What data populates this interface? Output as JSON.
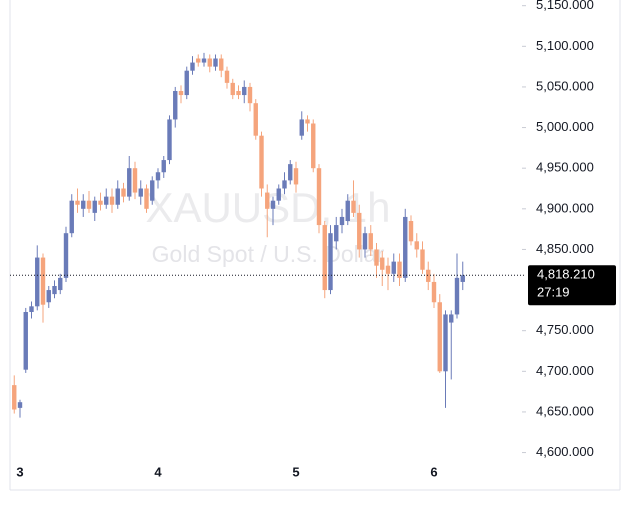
{
  "chart_data": {
    "type": "candlestick",
    "watermark": "XAUUSD, 1h",
    "watermark_subtitle": "Gold Spot / U.S. Dollar",
    "up_color": "#6a7bb8",
    "down_color": "#f5a47c",
    "categories": [
      null,
      "3",
      null,
      null,
      null,
      null,
      null,
      null,
      null,
      null,
      null,
      null,
      null,
      null,
      null,
      null,
      null,
      null,
      null,
      null,
      null,
      null,
      null,
      null,
      null,
      "4",
      null,
      null,
      null,
      null,
      null,
      null,
      null,
      null,
      null,
      null,
      null,
      null,
      null,
      null,
      null,
      null,
      null,
      null,
      null,
      null,
      null,
      null,
      null,
      "5",
      null,
      null,
      null,
      null,
      null,
      null,
      null,
      null,
      null,
      null,
      null,
      null,
      null,
      null,
      null,
      null,
      null,
      null,
      null,
      null,
      null,
      null,
      null,
      "6",
      null,
      null,
      null,
      null,
      null
    ],
    "open": [
      4683,
      4655,
      4702,
      4773,
      4780,
      4840,
      4785,
      4795,
      4800,
      4815,
      4870,
      4910,
      4900,
      4910,
      4895,
      4910,
      4905,
      4915,
      4905,
      4925,
      4915,
      4950,
      4915,
      4925,
      4910,
      4935,
      4945,
      4960,
      5010,
      5045,
      5040,
      5070,
      5085,
      5080,
      5085,
      5075,
      5085,
      5070,
      5055,
      5045,
      5040,
      5050,
      5030,
      4990,
      4920,
      4900,
      4910,
      4925,
      4935,
      4950,
      4990,
      5010,
      5005,
      4950,
      4880,
      4800,
      4860,
      4880,
      4885,
      4910,
      4895,
      4850,
      4870,
      4850,
      4840,
      4830,
      4820,
      4835,
      4815,
      4885,
      4860,
      4850,
      4825,
      4810,
      4785,
      4700,
      4760,
      4770,
      4810
    ],
    "high": [
      4695,
      4665,
      4778,
      4786,
      4855,
      4845,
      4805,
      4812,
      4820,
      4878,
      4918,
      4925,
      4918,
      4922,
      4915,
      4920,
      4925,
      4925,
      4935,
      4932,
      4965,
      4958,
      4935,
      4930,
      4940,
      4950,
      4965,
      5015,
      5050,
      5052,
      5075,
      5088,
      5090,
      5092,
      5090,
      5090,
      5090,
      5075,
      5060,
      5052,
      5058,
      5055,
      5035,
      4995,
      4930,
      4915,
      4930,
      4945,
      4960,
      4958,
      5020,
      5015,
      5010,
      4955,
      4885,
      4880,
      4890,
      4900,
      4918,
      4935,
      4905,
      4878,
      4880,
      4858,
      4848,
      4840,
      4845,
      4845,
      4900,
      4892,
      4870,
      4860,
      4835,
      4820,
      4795,
      4775,
      4775,
      4845,
      4835
    ],
    "low": [
      4648,
      4643,
      4698,
      4765,
      4775,
      4760,
      4778,
      4790,
      4795,
      4810,
      4865,
      4895,
      4890,
      4895,
      4885,
      4898,
      4900,
      4895,
      4900,
      4908,
      4910,
      4912,
      4905,
      4895,
      4905,
      4925,
      4938,
      4955,
      5000,
      5030,
      5035,
      5065,
      5075,
      5075,
      5068,
      5070,
      5062,
      5048,
      5035,
      5035,
      5030,
      5020,
      4985,
      4915,
      4865,
      4880,
      4905,
      4918,
      4930,
      4920,
      4985,
      4995,
      4945,
      4870,
      4790,
      4795,
      4850,
      4870,
      4880,
      4890,
      4840,
      4840,
      4842,
      4815,
      4805,
      4800,
      4810,
      4805,
      4810,
      4855,
      4840,
      4820,
      4800,
      4778,
      4698,
      4655,
      4690,
      4765,
      4800
    ],
    "close": [
      4653,
      4662,
      4773,
      4780,
      4840,
      4782,
      4800,
      4805,
      4815,
      4870,
      4910,
      4905,
      4910,
      4900,
      4910,
      4905,
      4915,
      4905,
      4925,
      4915,
      4950,
      4920,
      4925,
      4900,
      4935,
      4945,
      4960,
      5010,
      5045,
      5040,
      5070,
      5080,
      5080,
      5085,
      5075,
      5085,
      5070,
      5055,
      5040,
      5040,
      5050,
      5030,
      4990,
      4925,
      4900,
      4910,
      4925,
      4935,
      4955,
      4930,
      5010,
      5005,
      4950,
      4880,
      4800,
      4870,
      4880,
      4890,
      4910,
      4895,
      4850,
      4870,
      4850,
      4830,
      4825,
      4820,
      4835,
      4815,
      4890,
      4860,
      4850,
      4825,
      4810,
      4785,
      4700,
      4770,
      4770,
      4815,
      4818.21
    ],
    "ylim": [
      4597,
      5157
    ],
    "yticks": [
      {
        "value": 5150,
        "label": "5,150.000"
      },
      {
        "value": 5100,
        "label": "5,100.000"
      },
      {
        "value": 5050,
        "label": "5,050.000"
      },
      {
        "value": 5000,
        "label": "5,000.000"
      },
      {
        "value": 4950,
        "label": "4,950.000"
      },
      {
        "value": 4900,
        "label": "4,900.000"
      },
      {
        "value": 4850,
        "label": "4,850.000"
      },
      {
        "value": 4750,
        "label": "4,750.000"
      },
      {
        "value": 4700,
        "label": "4,700.000"
      },
      {
        "value": 4650,
        "label": "4,650.000"
      },
      {
        "value": 4600,
        "label": "4,600.000"
      }
    ],
    "last_price": {
      "value": 4818.21,
      "label": "4,818.210"
    },
    "countdown": "27:19"
  }
}
